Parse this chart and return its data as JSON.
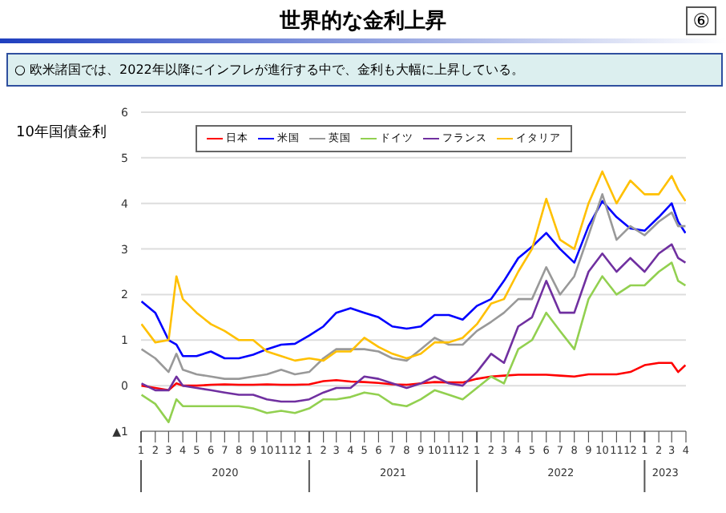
{
  "chart_data": {
    "type": "line",
    "title": "世界的な金利上昇",
    "subtitle": "○ 欧米諸国では、2022年以降にインフレが進行する中で、金利も大幅に上昇している。",
    "ylabel": "10年国債金利",
    "annotations": [
      "⑥",
      "2020",
      "2021",
      "2022",
      "2023"
    ],
    "x": [
      "2020-01-02",
      "2020-02-01",
      "2020-03-01",
      "2020-03-18",
      "2020-04-01",
      "2020-05-01",
      "2020-06-01",
      "2020-07-01",
      "2020-08-01",
      "2020-09-01",
      "2020-10-01",
      "2020-11-01",
      "2020-12-01",
      "2021-01-01",
      "2021-02-01",
      "2021-03-01",
      "2021-04-01",
      "2021-05-01",
      "2021-06-01",
      "2021-07-01",
      "2021-08-01",
      "2021-09-01",
      "2021-10-01",
      "2021-11-01",
      "2021-12-01",
      "2022-01-01",
      "2022-02-01",
      "2022-03-01",
      "2022-04-01",
      "2022-05-01",
      "2022-06-01",
      "2022-07-01",
      "2022-08-01",
      "2022-09-01",
      "2022-10-01",
      "2022-11-01",
      "2022-12-01",
      "2023-01-01",
      "2023-02-01",
      "2023-03-01",
      "2023-03-15",
      "2023-03-31"
    ],
    "series": [
      {
        "name": "日本",
        "color": "#ff0000",
        "values": [
          0.0,
          -0.05,
          -0.1,
          0.05,
          0.0,
          0.0,
          0.02,
          0.03,
          0.02,
          0.02,
          0.03,
          0.02,
          0.02,
          0.03,
          0.1,
          0.12,
          0.09,
          0.08,
          0.06,
          0.03,
          0.02,
          0.05,
          0.08,
          0.07,
          0.07,
          0.15,
          0.2,
          0.22,
          0.24,
          0.24,
          0.24,
          0.22,
          0.2,
          0.25,
          0.25,
          0.25,
          0.3,
          0.45,
          0.5,
          0.5,
          0.3,
          0.45
        ]
      },
      {
        "name": "米国",
        "color": "#0000ff",
        "values": [
          1.85,
          1.6,
          1.0,
          0.9,
          0.65,
          0.65,
          0.75,
          0.6,
          0.6,
          0.68,
          0.8,
          0.9,
          0.92,
          1.1,
          1.3,
          1.6,
          1.7,
          1.6,
          1.5,
          1.3,
          1.25,
          1.3,
          1.55,
          1.55,
          1.45,
          1.75,
          1.9,
          2.3,
          2.8,
          3.05,
          3.35,
          3.0,
          2.7,
          3.5,
          4.05,
          3.7,
          3.45,
          3.4,
          3.7,
          4.0,
          3.6,
          3.35
        ]
      },
      {
        "name": "英国",
        "color": "#999999",
        "values": [
          0.8,
          0.6,
          0.3,
          0.7,
          0.35,
          0.25,
          0.2,
          0.15,
          0.15,
          0.2,
          0.25,
          0.35,
          0.25,
          0.3,
          0.6,
          0.8,
          0.8,
          0.8,
          0.75,
          0.6,
          0.55,
          0.8,
          1.05,
          0.9,
          0.9,
          1.2,
          1.4,
          1.6,
          1.9,
          1.9,
          2.6,
          2.0,
          2.4,
          3.3,
          4.2,
          3.2,
          3.5,
          3.3,
          3.6,
          3.8,
          3.5,
          3.5
        ]
      },
      {
        "name": "ドイツ",
        "color": "#92d050",
        "values": [
          -0.2,
          -0.4,
          -0.8,
          -0.3,
          -0.45,
          -0.45,
          -0.45,
          -0.45,
          -0.45,
          -0.5,
          -0.6,
          -0.55,
          -0.6,
          -0.5,
          -0.3,
          -0.3,
          -0.25,
          -0.15,
          -0.2,
          -0.4,
          -0.45,
          -0.3,
          -0.1,
          -0.2,
          -0.3,
          -0.05,
          0.2,
          0.05,
          0.8,
          1.0,
          1.6,
          1.2,
          0.8,
          1.9,
          2.4,
          2.0,
          2.2,
          2.2,
          2.5,
          2.7,
          2.3,
          2.2
        ]
      },
      {
        "name": "フランス",
        "color": "#7030a0",
        "values": [
          0.05,
          -0.1,
          -0.1,
          0.2,
          0.0,
          -0.05,
          -0.1,
          -0.15,
          -0.2,
          -0.2,
          -0.3,
          -0.35,
          -0.35,
          -0.3,
          -0.15,
          -0.05,
          -0.05,
          0.2,
          0.15,
          0.05,
          -0.05,
          0.05,
          0.2,
          0.05,
          0.0,
          0.3,
          0.7,
          0.5,
          1.3,
          1.5,
          2.3,
          1.6,
          1.6,
          2.5,
          2.9,
          2.5,
          2.8,
          2.5,
          2.9,
          3.1,
          2.8,
          2.7
        ]
      },
      {
        "name": "イタリア",
        "color": "#ffc000",
        "values": [
          1.35,
          0.95,
          1.0,
          2.4,
          1.9,
          1.6,
          1.35,
          1.2,
          1.0,
          1.0,
          0.75,
          0.65,
          0.55,
          0.6,
          0.55,
          0.75,
          0.75,
          1.05,
          0.85,
          0.7,
          0.6,
          0.7,
          0.95,
          0.95,
          1.05,
          1.35,
          1.8,
          1.9,
          2.5,
          3.0,
          4.1,
          3.2,
          3.0,
          4.0,
          4.7,
          4.0,
          4.5,
          4.2,
          4.2,
          4.6,
          4.3,
          4.05
        ]
      }
    ],
    "xlim": [
      "2020-01-01",
      "2023-04-01"
    ],
    "xticks": [
      {
        "value": "2020-01-01",
        "label": "1"
      },
      {
        "value": "2020-02-01",
        "label": "2"
      },
      {
        "value": "2020-03-01",
        "label": "3"
      },
      {
        "value": "2020-04-01",
        "label": "4"
      },
      {
        "value": "2020-05-01",
        "label": "5"
      },
      {
        "value": "2020-06-01",
        "label": "6"
      },
      {
        "value": "2020-07-01",
        "label": "7"
      },
      {
        "value": "2020-08-01",
        "label": "8"
      },
      {
        "value": "2020-09-01",
        "label": "9"
      },
      {
        "value": "2020-10-01",
        "label": "10"
      },
      {
        "value": "2020-11-01",
        "label": "11"
      },
      {
        "value": "2020-12-01",
        "label": "12"
      },
      {
        "value": "2021-01-01",
        "label": "1"
      },
      {
        "value": "2021-02-01",
        "label": "2"
      },
      {
        "value": "2021-03-01",
        "label": "3"
      },
      {
        "value": "2021-04-01",
        "label": "4"
      },
      {
        "value": "2021-05-01",
        "label": "5"
      },
      {
        "value": "2021-06-01",
        "label": "6"
      },
      {
        "value": "2021-07-01",
        "label": "7"
      },
      {
        "value": "2021-08-01",
        "label": "8"
      },
      {
        "value": "2021-09-01",
        "label": "9"
      },
      {
        "value": "2021-10-01",
        "label": "10"
      },
      {
        "value": "2021-11-01",
        "label": "11"
      },
      {
        "value": "2021-12-01",
        "label": "12"
      },
      {
        "value": "2022-01-01",
        "label": "1"
      },
      {
        "value": "2022-02-01",
        "label": "2"
      },
      {
        "value": "2022-03-01",
        "label": "3"
      },
      {
        "value": "2022-04-01",
        "label": "4"
      },
      {
        "value": "2022-05-01",
        "label": "5"
      },
      {
        "value": "2022-06-01",
        "label": "6"
      },
      {
        "value": "2022-07-01",
        "label": "7"
      },
      {
        "value": "2022-08-01",
        "label": "8"
      },
      {
        "value": "2022-09-01",
        "label": "9"
      },
      {
        "value": "2022-10-01",
        "label": "10"
      },
      {
        "value": "2022-11-01",
        "label": "11"
      },
      {
        "value": "2022-12-01",
        "label": "12"
      },
      {
        "value": "2023-01-01",
        "label": "1"
      },
      {
        "value": "2023-02-01",
        "label": "2"
      },
      {
        "value": "2023-03-01",
        "label": "3"
      },
      {
        "value": "2023-04-01",
        "label": "4"
      }
    ],
    "ylim": [
      -1,
      6
    ],
    "yticks": [
      {
        "value": -1,
        "label": "▲1"
      },
      0,
      1,
      2,
      3,
      4,
      5,
      6
    ],
    "grid": "y",
    "legend": "top",
    "marker": "none",
    "line_style": "solid"
  }
}
